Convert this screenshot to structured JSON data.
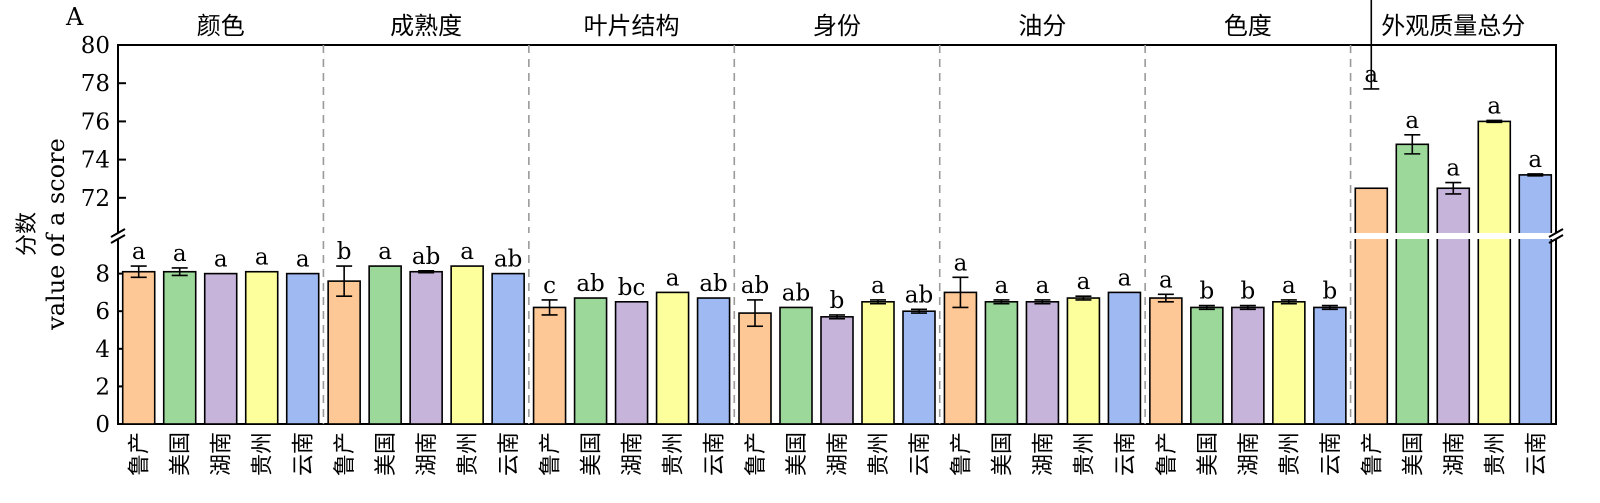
{
  "panel_label": "A",
  "chart_data": {
    "type": "bar",
    "title": "",
    "ylabel_cn": "分数",
    "ylabel_en": "value of a score",
    "ylim_lower": [
      0,
      10
    ],
    "ylim_upper": [
      70,
      80
    ],
    "yticks_lower": [
      0,
      2,
      4,
      6,
      8
    ],
    "yticks_upper": [
      72,
      74,
      76,
      78,
      80
    ],
    "axis_break": true,
    "categories": [
      "鲁产",
      "美国",
      "湖南",
      "贵州",
      "云南"
    ],
    "colors": [
      "#FDC896",
      "#9DD89B",
      "#C6B4DB",
      "#FDFE9C",
      "#9FB9F3"
    ],
    "groups": [
      {
        "name": "颜色",
        "values": [
          8.1,
          8.1,
          8.0,
          8.1,
          8.0
        ],
        "errors": [
          0.3,
          0.2,
          0.0,
          0.0,
          0.0
        ],
        "letters": [
          "a",
          "a",
          "a",
          "a",
          "a"
        ]
      },
      {
        "name": "成熟度",
        "values": [
          7.6,
          8.4,
          8.1,
          8.4,
          8.0
        ],
        "errors": [
          0.8,
          0.0,
          0.05,
          0.0,
          0.0
        ],
        "letters": [
          "b",
          "a",
          "ab",
          "a",
          "ab"
        ]
      },
      {
        "name": "叶片结构",
        "values": [
          6.2,
          6.7,
          6.5,
          7.0,
          6.7
        ],
        "errors": [
          0.4,
          0.0,
          0.0,
          0.0,
          0.0
        ],
        "letters": [
          "c",
          "ab",
          "bc",
          "a",
          "ab"
        ]
      },
      {
        "name": "身份",
        "values": [
          5.9,
          6.2,
          5.7,
          6.5,
          6.0
        ],
        "errors": [
          0.7,
          0.0,
          0.1,
          0.1,
          0.1
        ],
        "letters": [
          "ab",
          "ab",
          "b",
          "a",
          "ab"
        ]
      },
      {
        "name": "油分",
        "values": [
          7.0,
          6.5,
          6.5,
          6.7,
          7.0
        ],
        "errors": [
          0.8,
          0.1,
          0.1,
          0.1,
          0.0
        ],
        "letters": [
          "a",
          "a",
          "a",
          "a",
          "a"
        ]
      },
      {
        "name": "色度",
        "values": [
          6.7,
          6.2,
          6.2,
          6.5,
          6.2
        ],
        "errors": [
          0.2,
          0.1,
          0.1,
          0.1,
          0.1
        ],
        "letters": [
          "a",
          "b",
          "b",
          "a",
          "b"
        ]
      },
      {
        "name": "外观质量总分",
        "values": [
          72.5,
          74.8,
          72.5,
          76.0,
          73.2
        ],
        "errors": [
          5.2,
          0.5,
          0.3,
          0.05,
          0.05
        ],
        "letters": [
          "a",
          "a",
          "a",
          "a",
          "a"
        ]
      }
    ]
  }
}
